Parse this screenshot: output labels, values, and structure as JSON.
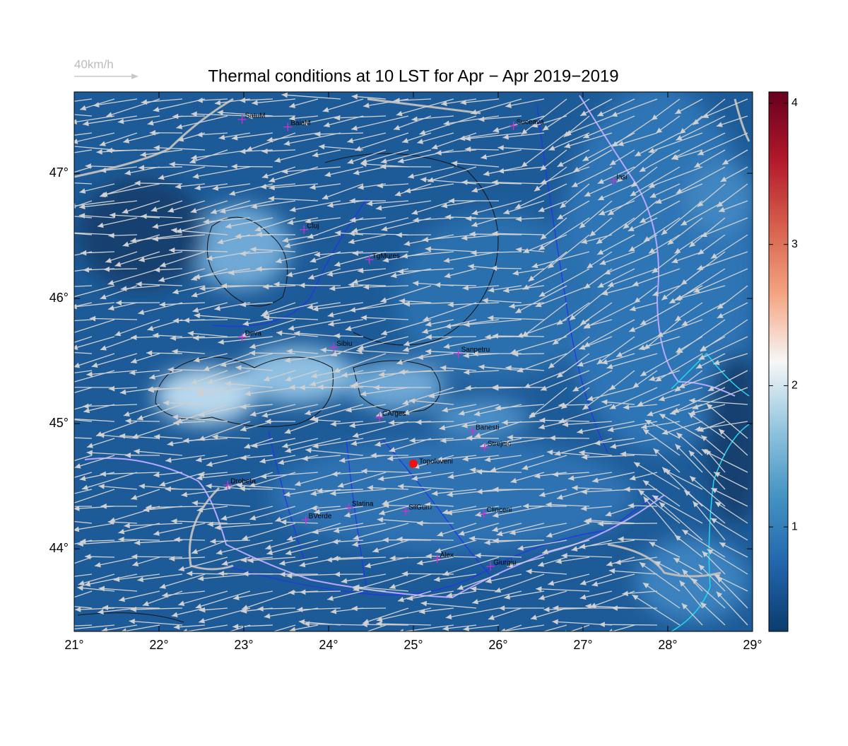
{
  "chart_data": {
    "type": "map",
    "title": "Thermal conditions at 10 LST for Apr − Apr  2019−2019",
    "wind_legend": "40km/h",
    "xlim": [
      21,
      29
    ],
    "ylim": [
      43.34,
      47.65
    ],
    "xticks": [
      {
        "value": 21,
        "label": "21°"
      },
      {
        "value": 22,
        "label": "22°"
      },
      {
        "value": 23,
        "label": "23°"
      },
      {
        "value": 24,
        "label": "24°"
      },
      {
        "value": 25,
        "label": "25°"
      },
      {
        "value": 26,
        "label": "26°"
      },
      {
        "value": 27,
        "label": "27°"
      },
      {
        "value": 28,
        "label": "28°"
      },
      {
        "value": 29,
        "label": "29°"
      }
    ],
    "yticks": [
      {
        "value": 44,
        "label": "44°"
      },
      {
        "value": 45,
        "label": "45°"
      },
      {
        "value": 46,
        "label": "46°"
      },
      {
        "value": 47,
        "label": "47°"
      }
    ],
    "cities": [
      {
        "name": "SatuM",
        "lon": 22.98,
        "lat": 47.43
      },
      {
        "name": "BaiaM",
        "lon": 23.52,
        "lat": 47.37
      },
      {
        "name": "Suceava",
        "lon": 26.18,
        "lat": 47.38
      },
      {
        "name": "Iasi",
        "lon": 27.36,
        "lat": 46.94
      },
      {
        "name": "Cluj",
        "lon": 23.71,
        "lat": 46.55
      },
      {
        "name": "TgMures",
        "lon": 24.48,
        "lat": 46.31
      },
      {
        "name": "Deva",
        "lon": 22.98,
        "lat": 45.69
      },
      {
        "name": "Sibiu",
        "lon": 24.06,
        "lat": 45.61
      },
      {
        "name": "Sanpetru",
        "lon": 25.53,
        "lat": 45.56
      },
      {
        "name": "CArges",
        "lon": 24.6,
        "lat": 45.05
      },
      {
        "name": "Banesti",
        "lon": 25.7,
        "lat": 44.94
      },
      {
        "name": "Strejnic",
        "lon": 25.84,
        "lat": 44.81
      },
      {
        "name": "Drobeta",
        "lon": 22.81,
        "lat": 44.51
      },
      {
        "name": "Slatina",
        "lon": 24.24,
        "lat": 44.33
      },
      {
        "name": "SilGum",
        "lon": 24.91,
        "lat": 44.3
      },
      {
        "name": "Clinceni",
        "lon": 25.83,
        "lat": 44.28
      },
      {
        "name": "BVerde",
        "lon": 23.73,
        "lat": 44.23
      },
      {
        "name": "Alex",
        "lon": 25.28,
        "lat": 43.92
      },
      {
        "name": "Giurgiu",
        "lon": 25.91,
        "lat": 43.86
      }
    ],
    "city_color": "#cc33cc",
    "site": {
      "name": "Topoloveni",
      "lon": 25.0,
      "lat": 44.68,
      "color": "#ee1111"
    },
    "colorbar": {
      "lim": [
        0.26,
        4.08
      ],
      "ticks": [
        1,
        2,
        3,
        4
      ],
      "colors": [
        "#0b3c6e",
        "#2166ac",
        "#4393c3",
        "#92c5de",
        "#f7f7f7",
        "#f4a582",
        "#d6604d",
        "#b2182b",
        "#67001f"
      ]
    }
  }
}
